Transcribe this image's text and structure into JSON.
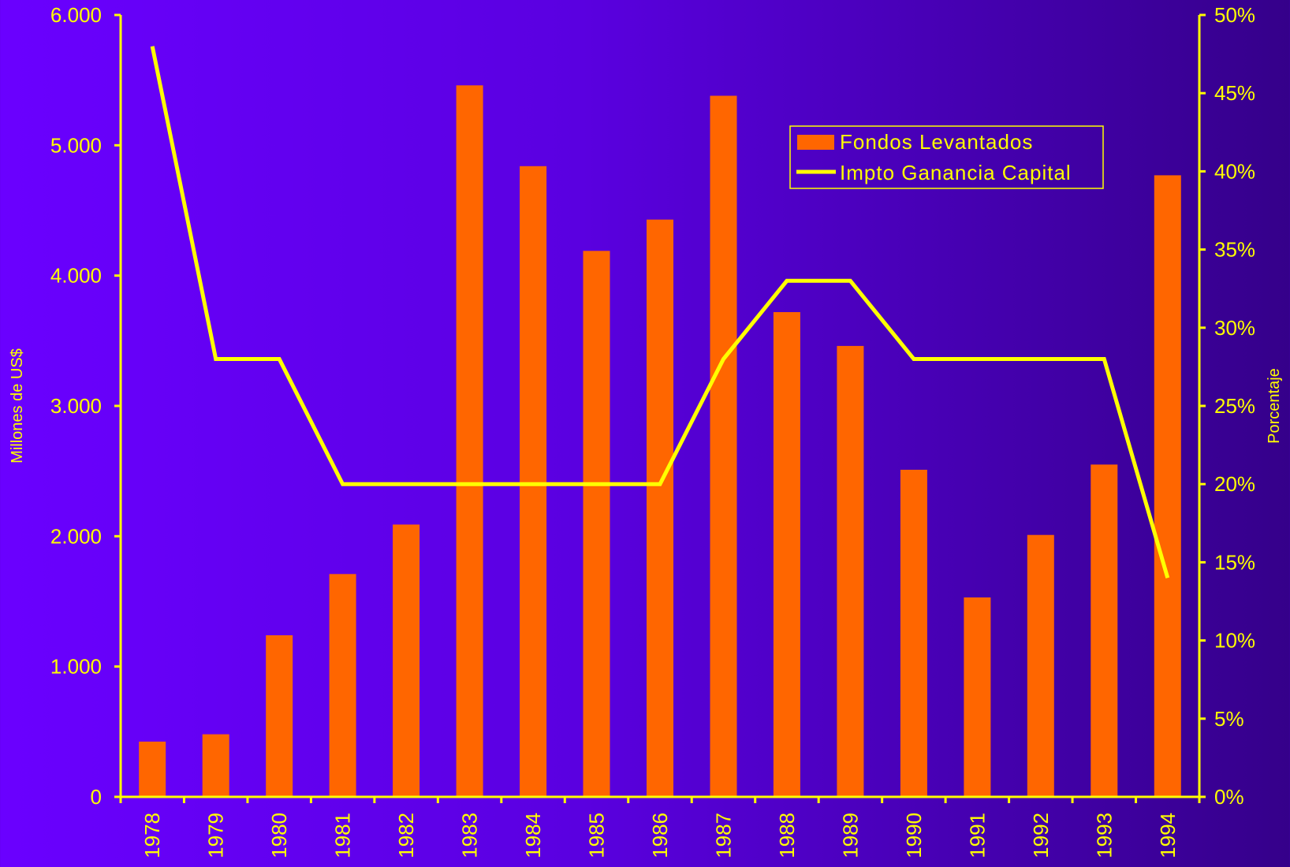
{
  "chart_data": {
    "type": "bar",
    "title": "",
    "x": [
      "1978",
      "1979",
      "1980",
      "1981",
      "1982",
      "1983",
      "1984",
      "1985",
      "1986",
      "1987",
      "1988",
      "1989",
      "1990",
      "1991",
      "1992",
      "1993",
      "1994"
    ],
    "y_left": {
      "label": "Millones de US$",
      "ylim": [
        0,
        6000
      ],
      "ticks": [
        0,
        1000,
        2000,
        3000,
        4000,
        5000,
        6000
      ],
      "tick_labels": [
        "0",
        "1.000",
        "2.000",
        "3.000",
        "4.000",
        "5.000",
        "6.000"
      ]
    },
    "y_right": {
      "label": "Porcentaje",
      "ylim": [
        0,
        50
      ],
      "ticks": [
        0,
        5,
        10,
        15,
        20,
        25,
        30,
        35,
        40,
        45,
        50
      ],
      "tick_labels": [
        "0%",
        "5%",
        "10%",
        "15%",
        "20%",
        "25%",
        "30%",
        "35%",
        "40%",
        "45%",
        "50%"
      ]
    },
    "series": [
      {
        "name": "Fondos Levantados",
        "type": "bar",
        "axis": "left",
        "color": "#ff6600",
        "values": [
          424,
          480,
          1240,
          1710,
          2090,
          5460,
          4840,
          4190,
          4430,
          5380,
          3720,
          3460,
          2510,
          1530,
          2010,
          2550,
          4770
        ]
      },
      {
        "name": "Impto Ganancia Capital",
        "type": "line",
        "axis": "right",
        "color": "#ffff00",
        "values": [
          48,
          28,
          28,
          20,
          20,
          20,
          20,
          20,
          20,
          28,
          33,
          33,
          28,
          28,
          28,
          28,
          14
        ]
      }
    ],
    "legend": {
      "position": "top-right",
      "entries": [
        "Fondos Levantados",
        "Impto Ganancia Capital"
      ]
    },
    "grid": false,
    "colors": {
      "axis": "#ffff00",
      "text": "#ffff00",
      "bar": "#ff6600",
      "line": "#ffff00"
    }
  }
}
